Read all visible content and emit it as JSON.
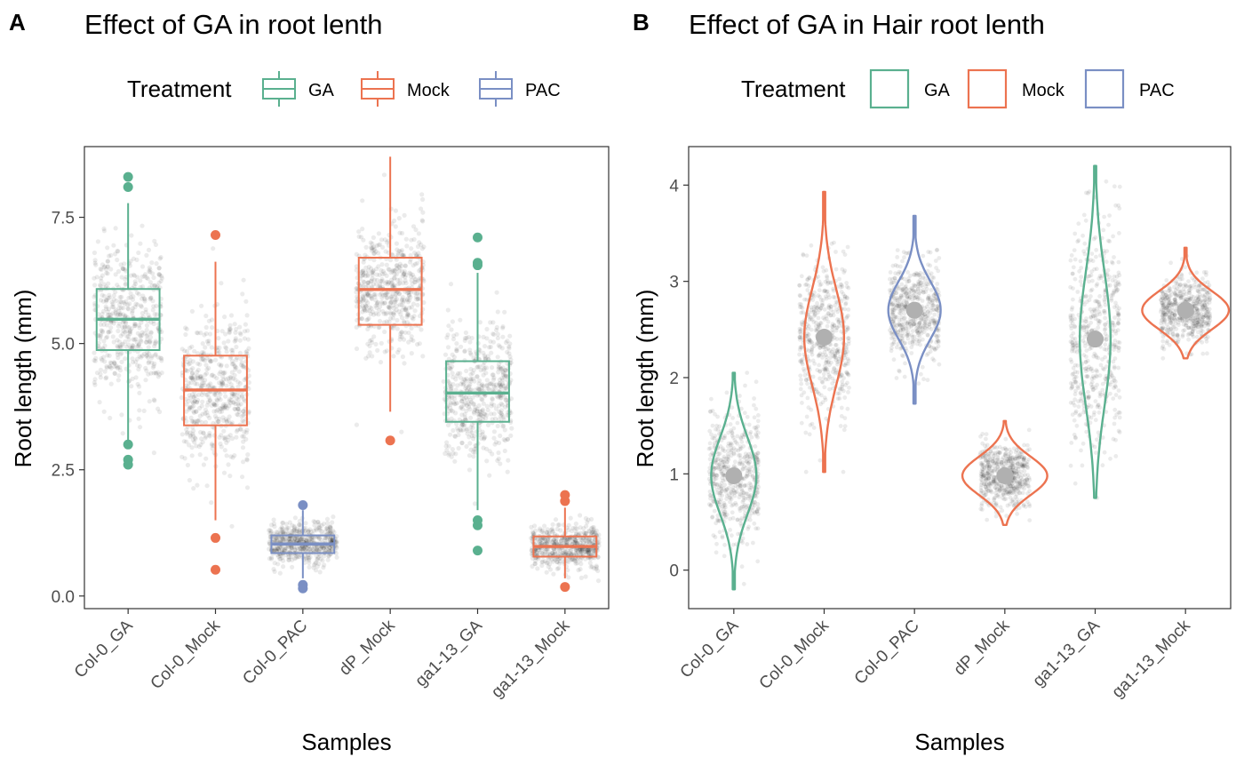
{
  "colors": {
    "GA": "#5ab08f",
    "Mock": "#ec7350",
    "PAC": "#7a8fc4",
    "jitter": "#000000",
    "mean_point": "#b0b0b0",
    "axis": "#333333",
    "grid": "none"
  },
  "chart_data": [
    {
      "type": "box",
      "panel_label": "A",
      "title": "Effect of GA in root lenth",
      "xlabel": "Samples",
      "ylabel": "Root length (mm)",
      "ylim": [
        -0.25,
        8.9
      ],
      "yticks": [
        0.0,
        2.5,
        5.0,
        7.5
      ],
      "ytick_labels": [
        "0.0",
        "2.5",
        "5.0",
        "7.5"
      ],
      "legend": {
        "title": "Treatment",
        "position": "top",
        "entries": [
          "GA",
          "Mock",
          "PAC"
        ],
        "key": "box"
      },
      "categories": [
        "Col-0_GA",
        "Col-0_Mock",
        "Col-0_PAC",
        "dP_Mock",
        "ga1-13_GA",
        "ga1-13_Mock"
      ],
      "treatments": [
        "GA",
        "Mock",
        "PAC",
        "Mock",
        "GA",
        "Mock"
      ],
      "boxes": [
        {
          "q1": 4.87,
          "median": 5.48,
          "q3": 6.08,
          "whisker_low": 3.05,
          "whisker_high": 7.78,
          "outliers": [
            2.6,
            2.7,
            3.0,
            8.1,
            8.3
          ],
          "jitter_sd": 1.05,
          "jitter_n": 520
        },
        {
          "q1": 3.38,
          "median": 4.08,
          "q3": 4.76,
          "whisker_low": 1.5,
          "whisker_high": 6.62,
          "outliers": [
            0.52,
            1.15,
            7.15
          ],
          "jitter_sd": 1.0,
          "jitter_n": 520
        },
        {
          "q1": 0.85,
          "median": 1.03,
          "q3": 1.2,
          "whisker_low": 0.35,
          "whisker_high": 1.7,
          "outliers": [
            0.15,
            0.22,
            1.8
          ],
          "jitter_sd": 0.28,
          "jitter_n": 520
        },
        {
          "q1": 5.37,
          "median": 6.07,
          "q3": 6.7,
          "whisker_low": 3.65,
          "whisker_high": 8.7,
          "outliers": [
            3.08
          ],
          "jitter_sd": 0.95,
          "jitter_n": 520
        },
        {
          "q1": 3.45,
          "median": 4.02,
          "q3": 4.65,
          "whisker_low": 1.7,
          "whisker_high": 6.4,
          "outliers": [
            0.9,
            1.4,
            1.5,
            6.55,
            6.6,
            7.1
          ],
          "jitter_sd": 0.95,
          "jitter_n": 520
        },
        {
          "q1": 0.78,
          "median": 0.98,
          "q3": 1.18,
          "whisker_low": 0.35,
          "whisker_high": 1.75,
          "outliers": [
            0.18,
            1.88,
            2.0
          ],
          "jitter_sd": 0.28,
          "jitter_n": 520
        }
      ]
    },
    {
      "type": "violin",
      "panel_label": "B",
      "title": "Effect of GA in Hair root lenth",
      "xlabel": "Samples",
      "ylabel": "Root length (mm)",
      "ylim": [
        -0.4,
        4.4
      ],
      "yticks": [
        0,
        1,
        2,
        3,
        4
      ],
      "ytick_labels": [
        "0",
        "1",
        "2",
        "3",
        "4"
      ],
      "legend": {
        "title": "Treatment",
        "position": "top",
        "entries": [
          "GA",
          "Mock",
          "PAC"
        ],
        "key": "rect"
      },
      "categories": [
        "Col-0_GA",
        "Col-0_Mock",
        "Col-0_PAC",
        "dP_Mock",
        "ga1-13_GA",
        "ga1-13_Mock"
      ],
      "treatments": [
        "GA",
        "Mock",
        "PAC",
        "Mock",
        "GA",
        "Mock"
      ],
      "violins": [
        {
          "mean": 0.98,
          "sd": 0.4,
          "min": -0.2,
          "max": 2.05,
          "max_half_width_frac": 0.25,
          "jitter_n": 520
        },
        {
          "mean": 2.42,
          "sd": 0.5,
          "min": 1.02,
          "max": 3.93,
          "max_half_width_frac": 0.22,
          "jitter_n": 520
        },
        {
          "mean": 2.7,
          "sd": 0.3,
          "min": 1.73,
          "max": 3.68,
          "max_half_width_frac": 0.29,
          "jitter_n": 520
        },
        {
          "mean": 0.98,
          "sd": 0.2,
          "min": 0.47,
          "max": 1.55,
          "max_half_width_frac": 0.47,
          "jitter_n": 520
        },
        {
          "mean": 2.4,
          "sd": 0.7,
          "min": 0.75,
          "max": 4.2,
          "max_half_width_frac": 0.17,
          "jitter_n": 520
        },
        {
          "mean": 2.7,
          "sd": 0.2,
          "min": 2.2,
          "max": 3.35,
          "max_half_width_frac": 0.48,
          "jitter_n": 520
        }
      ]
    }
  ]
}
